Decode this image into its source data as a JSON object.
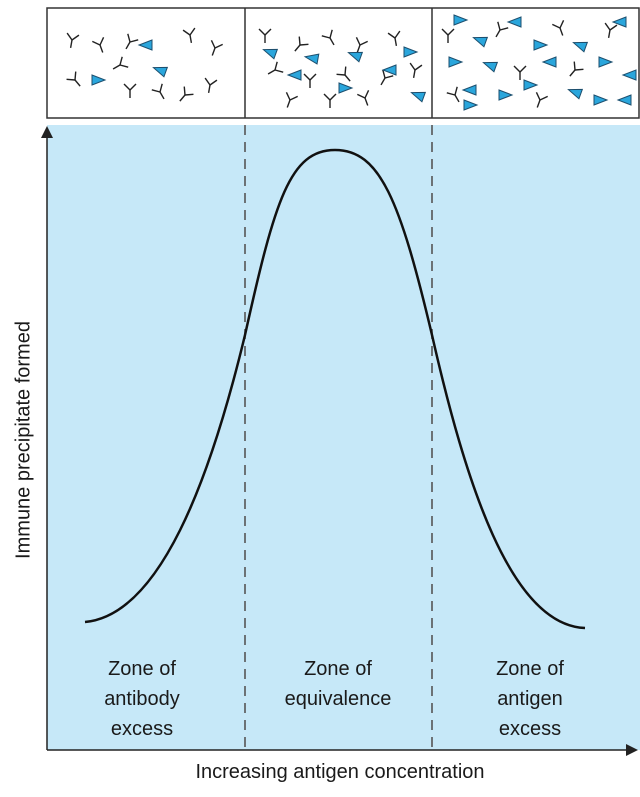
{
  "y_axis_label": "Immune precipitate formed",
  "x_axis_label": "Increasing antigen concentration",
  "zones": [
    {
      "lines": [
        "Zone of",
        "antibody",
        "excess"
      ]
    },
    {
      "lines": [
        "Zone of",
        "equivalence"
      ]
    },
    {
      "lines": [
        "Zone of",
        "antigen",
        "excess"
      ]
    }
  ]
}
